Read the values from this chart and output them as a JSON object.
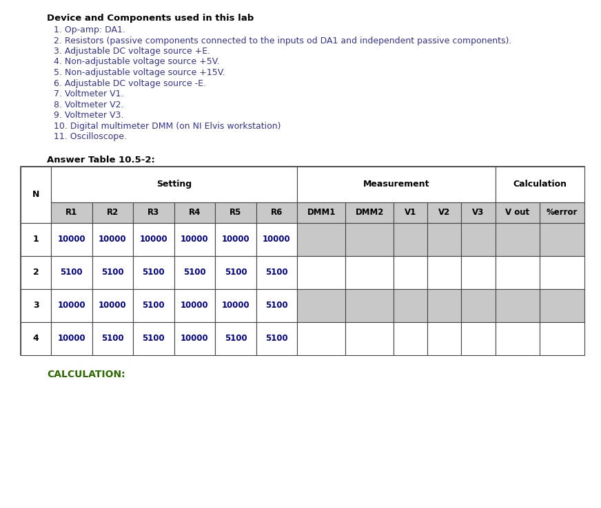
{
  "title_text": "Device and Components used in this lab",
  "items": [
    "1. Op-amp: DA1.",
    "2. Resistors (passive components connected to the inputs od DA1 and independent passive components).",
    "3. Adjustable DC voltage source +E.",
    "4. Non-adjustable voltage source +5V.",
    "5. Non-adjustable voltage source +15V.",
    "6. Adjustable DC voltage source -E.",
    "7. Voltmeter V1.",
    "8. Voltmeter V2.",
    "9. Voltmeter V3.",
    "10. Digital multimeter DMM (on NI Elvis workstation)",
    "11. Oscilloscope."
  ],
  "table_title": "Answer Table 10.5-2:",
  "sub_headers": [
    "N",
    "R1",
    "R2",
    "R3",
    "R4",
    "R5",
    "R6",
    "DMM1",
    "DMM2",
    "V1",
    "V2",
    "V3",
    "V out",
    "%error"
  ],
  "rows": [
    {
      "n": "1",
      "values": [
        "10000",
        "10000",
        "10000",
        "10000",
        "10000",
        "10000",
        "",
        "",
        "",
        "",
        "",
        "",
        ""
      ],
      "shaded": true
    },
    {
      "n": "2",
      "values": [
        "5100",
        "5100",
        "5100",
        "5100",
        "5100",
        "5100",
        "",
        "",
        "",
        "",
        "",
        "",
        ""
      ],
      "shaded": false
    },
    {
      "n": "3",
      "values": [
        "10000",
        "10000",
        "5100",
        "10000",
        "10000",
        "5100",
        "",
        "",
        "",
        "",
        "",
        "",
        ""
      ],
      "shaded": true
    },
    {
      "n": "4",
      "values": [
        "10000",
        "5100",
        "5100",
        "10000",
        "5100",
        "5100",
        "",
        "",
        "",
        "",
        "",
        "",
        ""
      ],
      "shaded": false
    }
  ],
  "calc_label": "CALCULATION:",
  "bg_color": "#ffffff",
  "text_color_title": "#000000",
  "text_color_items": "#333399",
  "text_color_table_title": "#000000",
  "text_color_header": "#000000",
  "text_color_data": "#00008b",
  "text_color_calc": "#2d6a00",
  "shaded_color": "#c8c8c8",
  "subheader_bg": "#c8c8c8",
  "border_color": "#444444"
}
